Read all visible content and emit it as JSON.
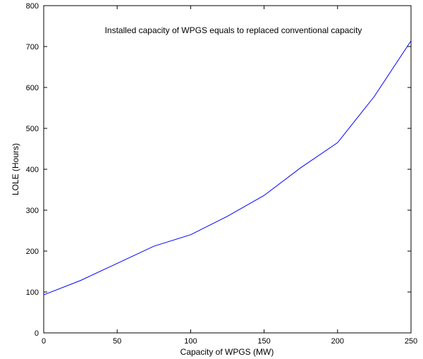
{
  "chart_data": {
    "type": "line",
    "annotation": "Installed capacity of WPGS equals to replaced conventional capacity",
    "xlabel": "Capacity of WPGS (MW)",
    "ylabel": "LOLE (Hours)",
    "xlim": [
      0,
      250
    ],
    "ylim": [
      0,
      800
    ],
    "x_ticks": [
      0,
      50,
      100,
      150,
      200,
      250
    ],
    "y_ticks": [
      0,
      100,
      200,
      300,
      400,
      500,
      600,
      700,
      800
    ],
    "x_tick_labels": [
      "0",
      "50",
      "100",
      "150",
      "200",
      "250"
    ],
    "y_tick_labels": [
      "0",
      "100",
      "200",
      "300",
      "400",
      "500",
      "600",
      "700",
      "800"
    ],
    "grid": false,
    "series": [
      {
        "color": "#0000ff",
        "x": [
          0,
          25,
          50,
          75,
          100,
          125,
          150,
          175,
          200,
          225,
          250
        ],
        "y": [
          93,
          128,
          170,
          212,
          240,
          285,
          336,
          404,
          465,
          578,
          714
        ]
      }
    ]
  }
}
